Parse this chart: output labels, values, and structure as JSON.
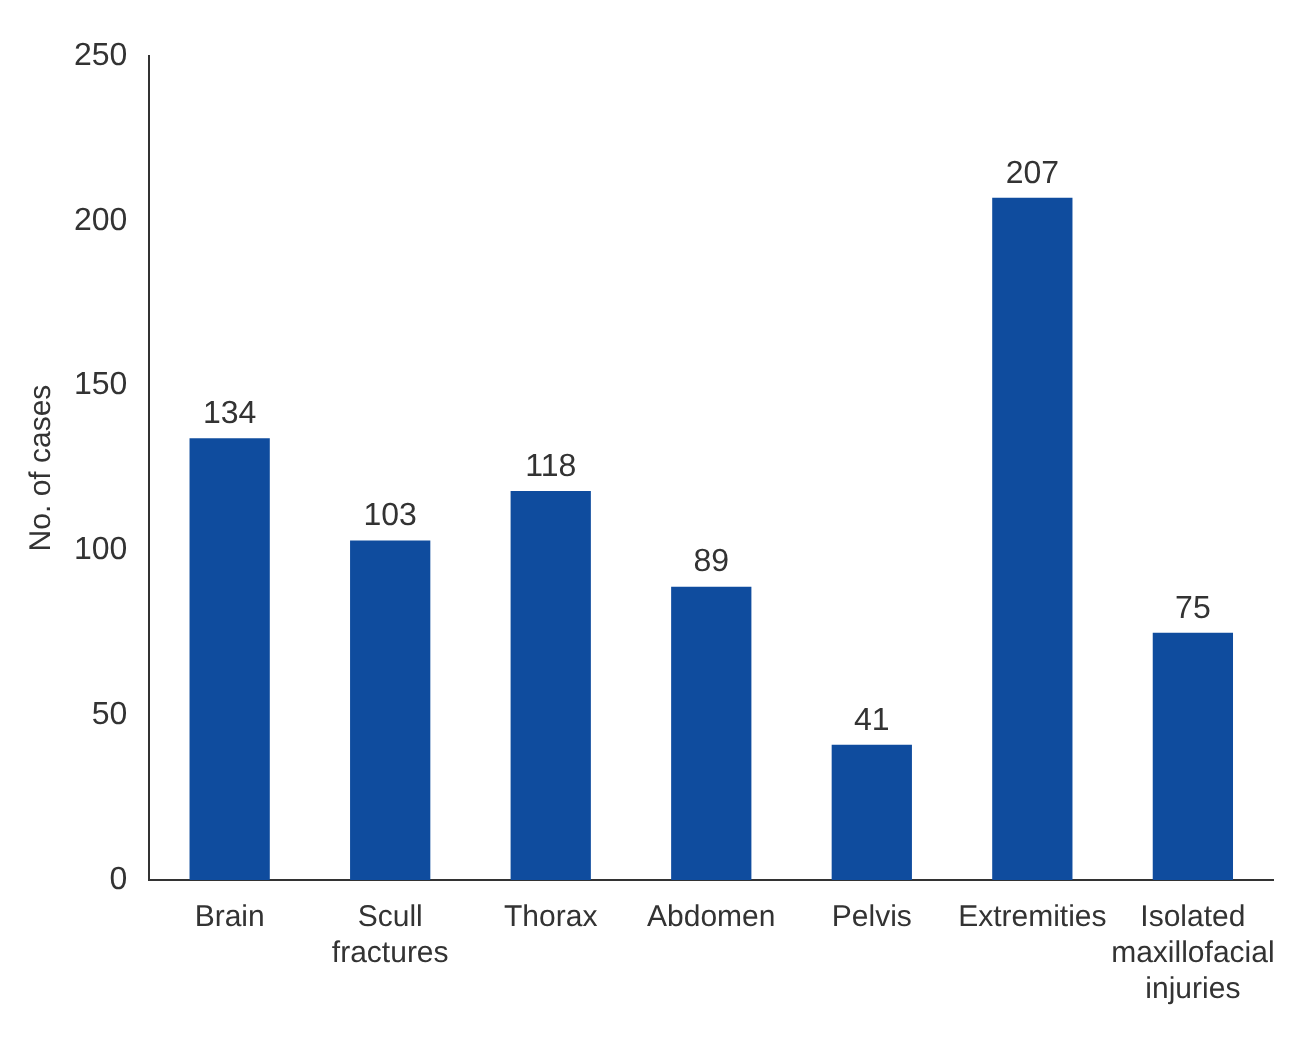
{
  "chart_data": {
    "type": "bar",
    "ylabel": "No. of cases",
    "categories": [
      "Brain",
      "Scull fractures",
      "Thorax",
      "Abdomen",
      "Pelvis",
      "Extremities",
      "Isolated maxillofacial injuries"
    ],
    "values": [
      134,
      103,
      118,
      89,
      41,
      207,
      75
    ],
    "color": "#0f4c9e",
    "ylim": [
      0,
      250
    ],
    "yticks": [
      0,
      50,
      100,
      150,
      200,
      250
    ],
    "grid": false,
    "data_labels": true,
    "legend": false
  }
}
